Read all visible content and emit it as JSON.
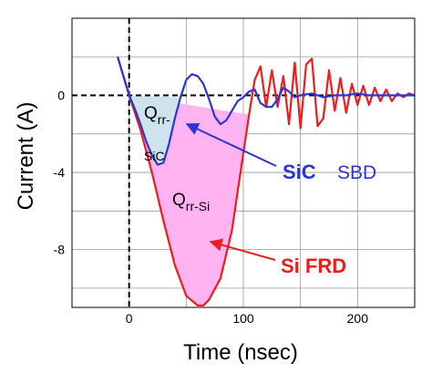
{
  "chart_data": {
    "type": "line",
    "xlabel": "Time (nsec)",
    "ylabel": "Current (A)",
    "xlim": [
      -50,
      250
    ],
    "ylim": [
      -11,
      4
    ],
    "x_ticks": [
      0,
      100,
      200
    ],
    "x_tick_labels": [
      "0",
      "100",
      "200"
    ],
    "y_ticks": [
      0,
      -4,
      -8
    ],
    "y_tick_labels": [
      "0",
      "-4",
      "-8"
    ],
    "grid": true,
    "series": [
      {
        "name": "Si FRD",
        "color": "#ee1c1c",
        "x": [
          -10,
          -5,
          0,
          10,
          20,
          30,
          40,
          50,
          60,
          65,
          70,
          80,
          90,
          100,
          105,
          110,
          115,
          120,
          125,
          130,
          135,
          140,
          145,
          150,
          155,
          160,
          165,
          170,
          175,
          180,
          185,
          190,
          195,
          200,
          205,
          210,
          215,
          220,
          225,
          230,
          235,
          240,
          245,
          250
        ],
        "y": [
          2.0,
          1.0,
          0.0,
          -1.8,
          -4.0,
          -6.5,
          -8.8,
          -10.4,
          -10.9,
          -10.9,
          -10.6,
          -9.5,
          -7.0,
          -3.0,
          -1.0,
          0.8,
          1.5,
          -0.6,
          1.3,
          -0.6,
          1.0,
          -1.5,
          1.7,
          -1.7,
          1.6,
          1.9,
          -1.6,
          -1.2,
          1.3,
          -0.8,
          0.9,
          -0.9,
          0.6,
          -0.5,
          0.5,
          -0.5,
          0.4,
          -0.3,
          0.3,
          -0.3,
          0.1,
          -0.1,
          0.1,
          0.0
        ]
      },
      {
        "name": "SiC SBD",
        "color": "#2b35d6",
        "x": [
          -10,
          -5,
          0,
          5,
          10,
          15,
          20,
          25,
          30,
          35,
          40,
          45,
          50,
          55,
          60,
          65,
          70,
          75,
          80,
          85,
          90,
          95,
          100,
          105,
          110,
          115,
          120,
          125,
          130,
          135,
          140,
          145,
          150,
          160,
          170,
          180,
          190,
          200,
          210,
          220,
          230,
          240,
          250
        ],
        "y": [
          2.0,
          1.0,
          0.0,
          -0.7,
          -1.5,
          -2.4,
          -3.1,
          -3.6,
          -3.5,
          -2.5,
          -1.2,
          -0.1,
          0.8,
          1.1,
          1.0,
          0.6,
          -0.2,
          -1.1,
          -1.5,
          -1.3,
          -0.8,
          -0.3,
          -0.1,
          0.2,
          0.3,
          -0.4,
          -0.6,
          -0.6,
          -0.2,
          0.4,
          0.2,
          -0.1,
          0.0,
          0.1,
          -0.1,
          0.0,
          0.0,
          0.1,
          0.0,
          0.0,
          0.0,
          0.0,
          0.0
        ]
      }
    ],
    "legend": [
      {
        "text": "SiC",
        "text2": "SBD",
        "color": "#2b35d6"
      },
      {
        "text": "Si FRD",
        "color": "#ee1c1c"
      }
    ],
    "annotations": [
      {
        "main": "Q",
        "sub": "rr-"
      },
      {
        "main": "",
        "sub": "SiC"
      },
      {
        "main": "Q",
        "sub": "rr-Si"
      }
    ],
    "fills": {
      "si_color": "#ffb3f0",
      "sic_color": "#cfe3ee"
    }
  }
}
